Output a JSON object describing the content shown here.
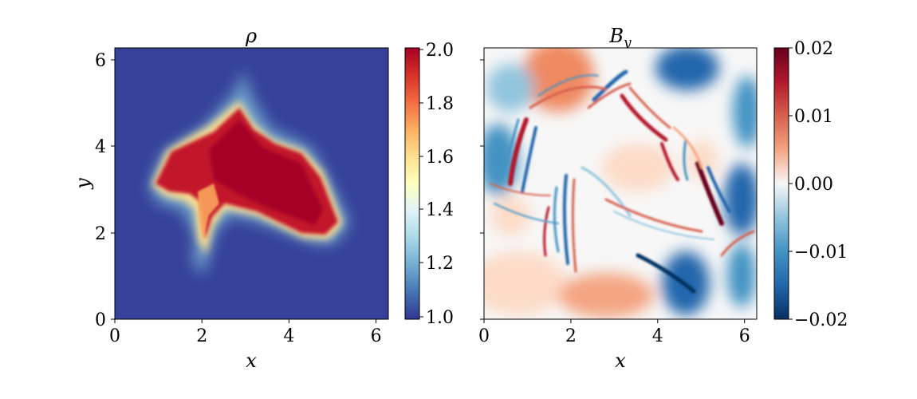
{
  "chart_data": [
    {
      "type": "heatmap",
      "title": "ρ",
      "xlabel": "x",
      "ylabel": "y",
      "xlim": [
        0,
        6.283
      ],
      "ylim": [
        0,
        6.283
      ],
      "xticks": [
        "0",
        "2",
        "4",
        "6"
      ],
      "yticks": [
        "0",
        "2",
        "4",
        "6"
      ],
      "colormap": "RdYlBu_r",
      "colorbar": {
        "range": [
          1.0,
          2.0
        ],
        "ticks": [
          "1.0",
          "1.2",
          "1.4",
          "1.6",
          "1.8",
          "2.0"
        ]
      },
      "background_value": 1.0,
      "peak_value": 2.0,
      "dense_region_outline": [
        [
          0.8,
          3.1
        ],
        [
          1.2,
          3.9
        ],
        [
          2.2,
          4.4
        ],
        [
          3.0,
          5.0
        ],
        [
          3.4,
          4.5
        ],
        [
          4.2,
          4.0
        ],
        [
          4.9,
          2.7
        ],
        [
          5.1,
          2.1
        ],
        [
          4.5,
          1.8
        ],
        [
          3.2,
          2.3
        ],
        [
          2.3,
          2.1
        ],
        [
          2.0,
          1.5
        ],
        [
          1.9,
          2.2
        ],
        [
          1.6,
          2.8
        ],
        [
          1.0,
          2.9
        ]
      ]
    },
    {
      "type": "heatmap",
      "title": "B_y",
      "xlabel": "x",
      "ylabel": "",
      "xlim": [
        0,
        6.283
      ],
      "ylim": [
        0,
        6.283
      ],
      "xticks": [
        "0",
        "2",
        "4",
        "6"
      ],
      "colormap": "RdBu_r",
      "colorbar": {
        "range": [
          -0.02,
          0.02
        ],
        "ticks": [
          "−0.02",
          "−0.01",
          "0.00",
          "0.01",
          "0.02"
        ]
      }
    }
  ]
}
